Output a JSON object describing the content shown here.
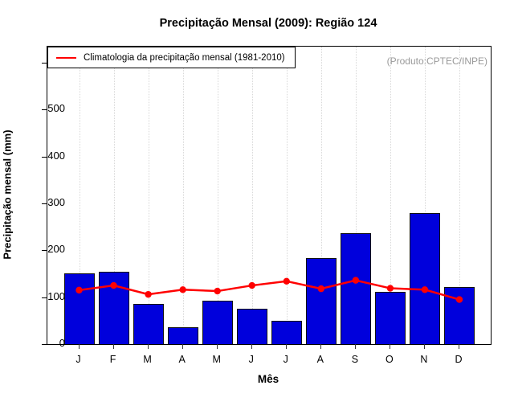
{
  "title": "Precipitação Mensal (2009): Região 124",
  "annotation": "(Produto:CPTEC/INPE)",
  "legend": {
    "label": "Climatologia da precipitação mensal (1981-2010)"
  },
  "colors": {
    "bar_fill": "#0000dc",
    "bar_border": "#111111",
    "line": "#ff0000",
    "grid": "#d8d8d8",
    "annotation_text": "#999999"
  },
  "chart_data": {
    "type": "bar",
    "title": "Precipitação Mensal (2009): Região 124",
    "xlabel": "Mês",
    "ylabel": "Precipitação mensal (mm)",
    "categories": [
      "J",
      "F",
      "M",
      "A",
      "M",
      "J",
      "J",
      "A",
      "S",
      "O",
      "N",
      "D"
    ],
    "series": [
      {
        "name": "Precipitação Mensal (2009)",
        "type": "bar",
        "values": [
          150,
          154,
          85,
          36,
          93,
          76,
          49,
          183,
          236,
          112,
          280,
          122
        ]
      },
      {
        "name": "Climatologia da precipitação mensal (1981-2010)",
        "type": "line",
        "values": [
          115,
          125,
          106,
          116,
          113,
          125,
          134,
          118,
          136,
          119,
          116,
          95
        ]
      }
    ],
    "ylim": [
      0,
      634
    ],
    "yticks": [
      0,
      100,
      200,
      300,
      400,
      500,
      600
    ],
    "grid": "vertical-dotted",
    "legend_position": "top-left",
    "annotation": "(Produto:CPTEC/INPE)"
  }
}
